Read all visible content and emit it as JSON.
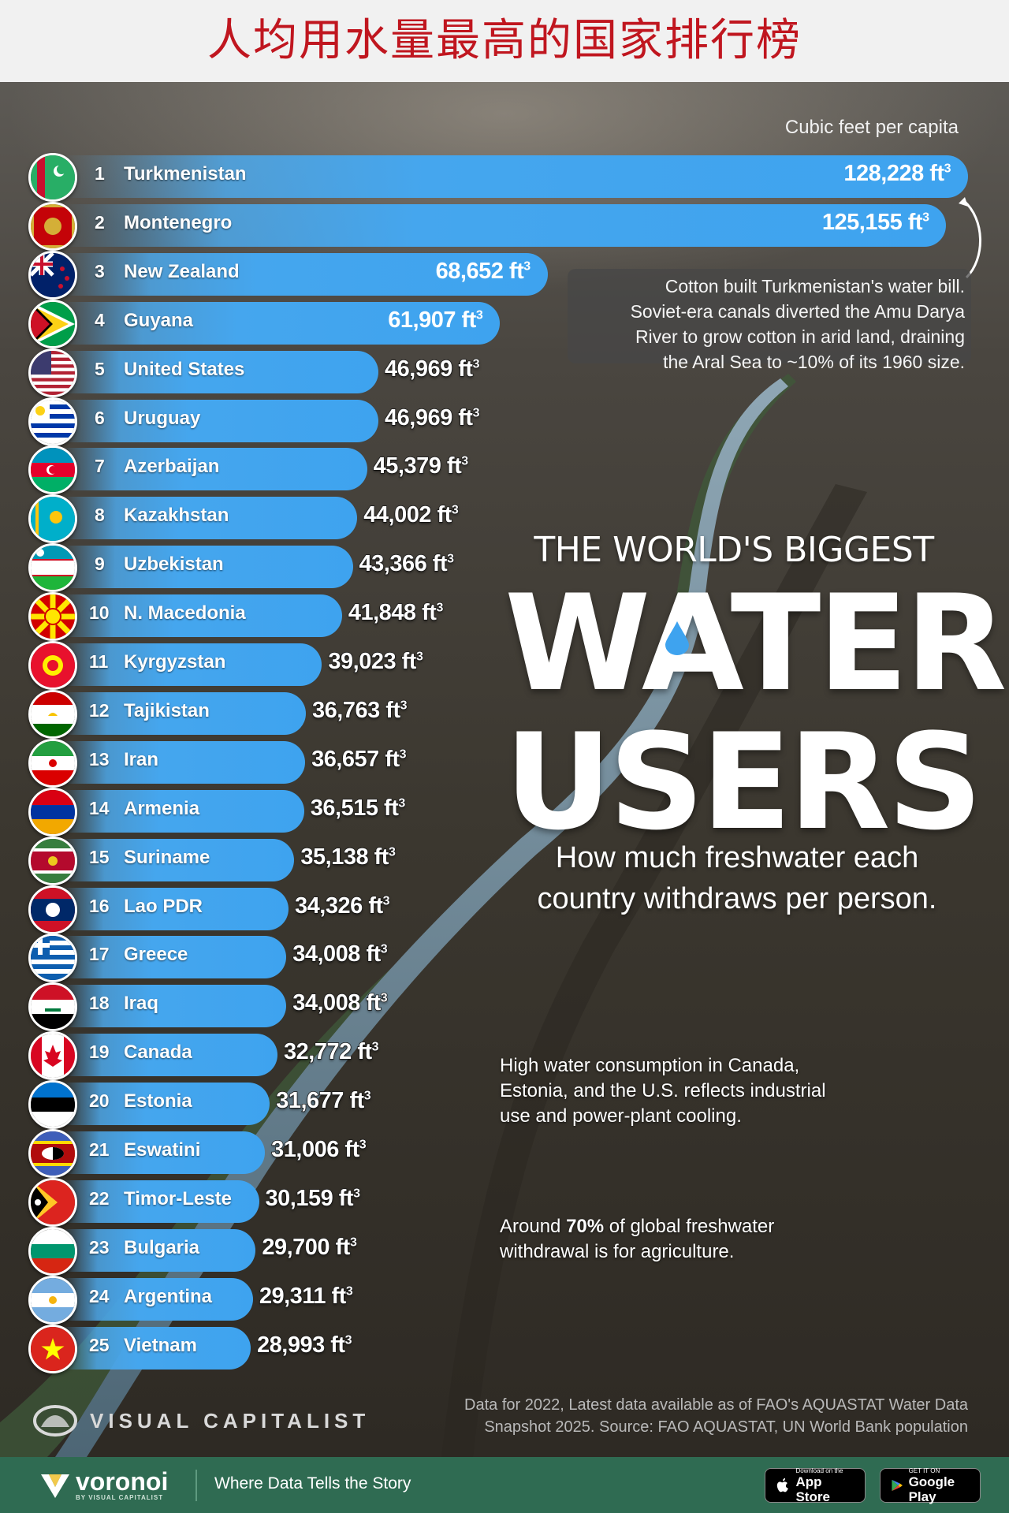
{
  "header": {
    "title": "人均用水量最高的国家排行榜"
  },
  "chart_data": {
    "type": "bar",
    "unit_label": "Cubic feet per capita",
    "unit_suffix": "ft",
    "rows": [
      {
        "rank": "1",
        "country": "Turkmenistan",
        "value": 128228,
        "label": "128,228",
        "flag": "turkmenistan-flag"
      },
      {
        "rank": "2",
        "country": "Montenegro",
        "value": 125155,
        "label": "125,155",
        "flag": "montenegro-flag"
      },
      {
        "rank": "3",
        "country": "New Zealand",
        "value": 68652,
        "label": "68,652",
        "flag": "new-zealand-flag"
      },
      {
        "rank": "4",
        "country": "Guyana",
        "value": 61907,
        "label": "61,907",
        "flag": "guyana-flag"
      },
      {
        "rank": "5",
        "country": "United States",
        "value": 46969,
        "label": "46,969",
        "flag": "united-states-flag"
      },
      {
        "rank": "6",
        "country": "Uruguay",
        "value": 46969,
        "label": "46,969",
        "flag": "uruguay-flag"
      },
      {
        "rank": "7",
        "country": "Azerbaijan",
        "value": 45379,
        "label": "45,379",
        "flag": "azerbaijan-flag"
      },
      {
        "rank": "8",
        "country": "Kazakhstan",
        "value": 44002,
        "label": "44,002",
        "flag": "kazakhstan-flag"
      },
      {
        "rank": "9",
        "country": "Uzbekistan",
        "value": 43366,
        "label": "43,366",
        "flag": "uzbekistan-flag"
      },
      {
        "rank": "10",
        "country": "N. Macedonia",
        "value": 41848,
        "label": "41,848",
        "flag": "north-macedonia-flag"
      },
      {
        "rank": "11",
        "country": "Kyrgyzstan",
        "value": 39023,
        "label": "39,023",
        "flag": "kyrgyzstan-flag"
      },
      {
        "rank": "12",
        "country": "Tajikistan",
        "value": 36763,
        "label": "36,763",
        "flag": "tajikistan-flag"
      },
      {
        "rank": "13",
        "country": "Iran",
        "value": 36657,
        "label": "36,657",
        "flag": "iran-flag"
      },
      {
        "rank": "14",
        "country": "Armenia",
        "value": 36515,
        "label": "36,515",
        "flag": "armenia-flag"
      },
      {
        "rank": "15",
        "country": "Suriname",
        "value": 35138,
        "label": "35,138",
        "flag": "suriname-flag"
      },
      {
        "rank": "16",
        "country": "Lao PDR",
        "value": 34326,
        "label": "34,326",
        "flag": "laos-flag"
      },
      {
        "rank": "17",
        "country": "Greece",
        "value": 34008,
        "label": "34,008",
        "flag": "greece-flag"
      },
      {
        "rank": "18",
        "country": "Iraq",
        "value": 34008,
        "label": "34,008",
        "flag": "iraq-flag"
      },
      {
        "rank": "19",
        "country": "Canada",
        "value": 32772,
        "label": "32,772",
        "flag": "canada-flag"
      },
      {
        "rank": "20",
        "country": "Estonia",
        "value": 31677,
        "label": "31,677",
        "flag": "estonia-flag"
      },
      {
        "rank": "21",
        "country": "Eswatini",
        "value": 31006,
        "label": "31,006",
        "flag": "eswatini-flag"
      },
      {
        "rank": "22",
        "country": "Timor-Leste",
        "value": 30159,
        "label": "30,159",
        "flag": "timor-leste-flag"
      },
      {
        "rank": "23",
        "country": "Bulgaria",
        "value": 29700,
        "label": "29,700",
        "flag": "bulgaria-flag"
      },
      {
        "rank": "24",
        "country": "Argentina",
        "value": 29311,
        "label": "29,311",
        "flag": "argentina-flag"
      },
      {
        "rank": "25",
        "country": "Vietnam",
        "value": 28993,
        "label": "28,993",
        "flag": "vietnam-flag"
      }
    ]
  },
  "annotations": {
    "turkmenistan_note": [
      "Cotton built Turkmenistan's water bill.",
      "Soviet-era canals diverted the Amu Darya",
      "River to grow cotton in arid land, draining",
      "the Aral Sea to ~10% of its 1960 size."
    ],
    "industry_note": [
      "High water consumption in Canada,",
      "Estonia, and the U.S. reflects industrial",
      "use and power-plant cooling."
    ],
    "agri_note_before": "Around ",
    "agri_note_bold": "70%",
    "agri_note_after_line1": " of global freshwater",
    "agri_note_line2": "withdrawal is for agriculture."
  },
  "headline": {
    "small": "THE WORLD'S BIGGEST",
    "word1": "WATER",
    "word2": "USERS",
    "subtitle_line1": "How much freshwater each",
    "subtitle_line2": "country withdraws per person."
  },
  "source": {
    "line1": "Data for 2022, Latest data available as of FAO's AQUASTAT Water Data",
    "line2": "Snapshot 2025. Source: FAO AQUASTAT, UN World Bank population"
  },
  "branding": {
    "vc_name": "VISUAL CAPITALIST",
    "voronoi": "voronoi",
    "voronoi_by": "BY VISUAL CAPITALIST",
    "tagline": "Where Data Tells the Story",
    "appstore_small": "Download on the",
    "appstore_big": "App Store",
    "gplay_small": "GET IT ON",
    "gplay_big": "Google Play"
  },
  "colors": {
    "bar": "#45a6ee",
    "title": "#c0161f",
    "footer": "#2f6b52"
  }
}
